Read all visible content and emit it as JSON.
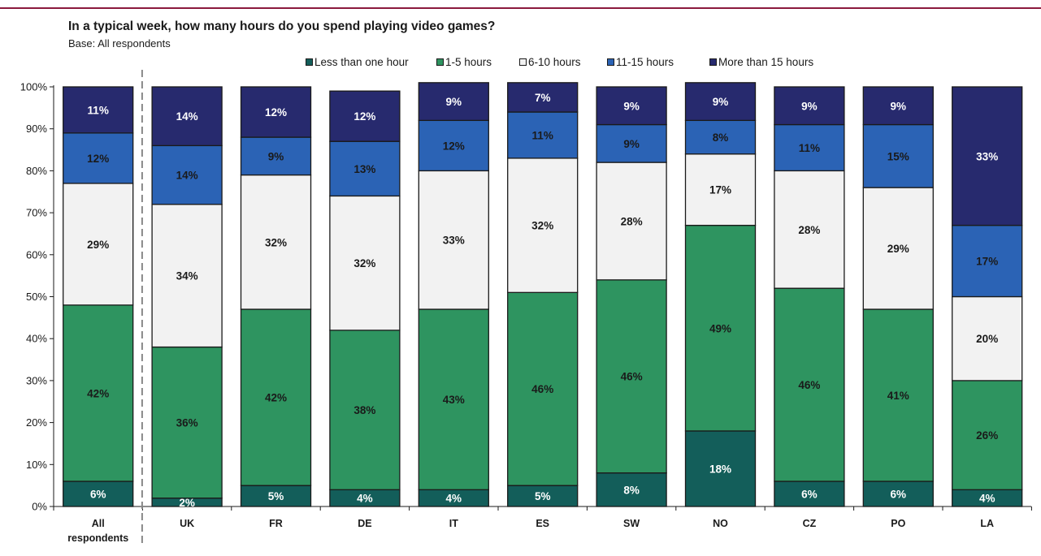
{
  "chart_data": {
    "type": "bar",
    "stacked": true,
    "title": "In a typical week, how many hours do you spend playing video games?",
    "subtitle": "Base: All respondents",
    "categories": [
      "All respondents",
      "UK",
      "FR",
      "DE",
      "IT",
      "ES",
      "SW",
      "NO",
      "CZ",
      "PO",
      "LA"
    ],
    "yticks": [
      "0%",
      "10%",
      "20%",
      "30%",
      "40%",
      "50%",
      "60%",
      "70%",
      "80%",
      "90%",
      "100%"
    ],
    "ylim": [
      0,
      100
    ],
    "legend_position": "top",
    "series": [
      {
        "name": "Less than one hour",
        "color": "#135e5a",
        "values": [
          6,
          2,
          5,
          4,
          4,
          5,
          8,
          18,
          6,
          6,
          4
        ],
        "labels": [
          "6%",
          "2%",
          "5%",
          "4%",
          "4%",
          "5%",
          "8%",
          "18%",
          "6%",
          "6%",
          "4%"
        ]
      },
      {
        "name": "1-5 hours",
        "color": "#2e9460",
        "values": [
          42,
          36,
          42,
          38,
          43,
          46,
          46,
          49,
          46,
          41,
          26
        ],
        "labels": [
          "42%",
          "36%",
          "42%",
          "38%",
          "43%",
          "46%",
          "46%",
          "49%",
          "46%",
          "41%",
          "26%"
        ]
      },
      {
        "name": "6-10 hours",
        "color": "#f2f2f2",
        "values": [
          29,
          34,
          32,
          32,
          33,
          32,
          28,
          17,
          28,
          29,
          20
        ],
        "labels": [
          "29%",
          "34%",
          "32%",
          "32%",
          "33%",
          "32%",
          "28%",
          "17%",
          "28%",
          "29%",
          "20%"
        ]
      },
      {
        "name": "11-15 hours",
        "color": "#2b63b5",
        "values": [
          12,
          14,
          9,
          13,
          12,
          11,
          9,
          8,
          11,
          15,
          17
        ],
        "labels": [
          "12%",
          "14%",
          "9%",
          "13%",
          "12%",
          "11%",
          "9%",
          "8%",
          "11%",
          "15%",
          "17%"
        ]
      },
      {
        "name": "More than 15 hours",
        "color": "#272a6e",
        "values": [
          11,
          14,
          12,
          12,
          9,
          7,
          9,
          9,
          9,
          9,
          33
        ],
        "labels": [
          "11%",
          "14%",
          "12%",
          "12%",
          "9%",
          "7%",
          "9%",
          "9%",
          "9%",
          "9%",
          "33%"
        ]
      }
    ]
  }
}
